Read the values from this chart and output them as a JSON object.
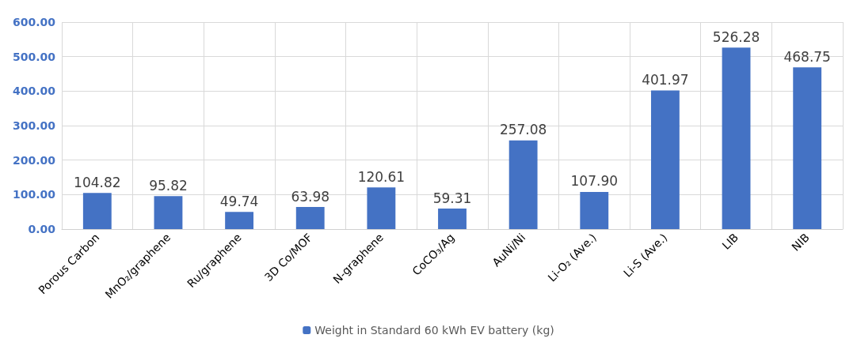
{
  "chart_data": {
    "type": "bar",
    "categories": [
      "Porous Carbon",
      "MnO₂/graphene",
      "Ru/graphene",
      "3D Co/MOF",
      "N-graphene",
      "CoCO₃/Ag",
      "AuNi/Ni",
      "Li-O₂ (Ave.)",
      "Li-S (Ave.)",
      "LIB",
      "NIB"
    ],
    "series": [
      {
        "name": "Weight in Standard 60 kWh EV battery (kg)",
        "color": "#4472c4",
        "values": [
          104.82,
          95.82,
          49.74,
          63.98,
          120.61,
          59.31,
          257.08,
          107.9,
          401.97,
          526.28,
          468.75
        ],
        "value_labels": [
          "104.82",
          "95.82",
          "49.74",
          "63.98",
          "120.61",
          "59.31",
          "257.08",
          "107.90",
          "401.97",
          "526.28",
          "468.75"
        ]
      }
    ],
    "ylim": [
      0,
      600
    ],
    "yticks": [
      {
        "value": 0,
        "label": "0.00"
      },
      {
        "value": 100,
        "label": "100.00"
      },
      {
        "value": 200,
        "label": "200.00"
      },
      {
        "value": 300,
        "label": "300.00"
      },
      {
        "value": 400,
        "label": "400.00"
      },
      {
        "value": 500,
        "label": "500.00"
      },
      {
        "value": 600,
        "label": "600.00"
      }
    ],
    "grid": true,
    "legend": "bottom"
  }
}
